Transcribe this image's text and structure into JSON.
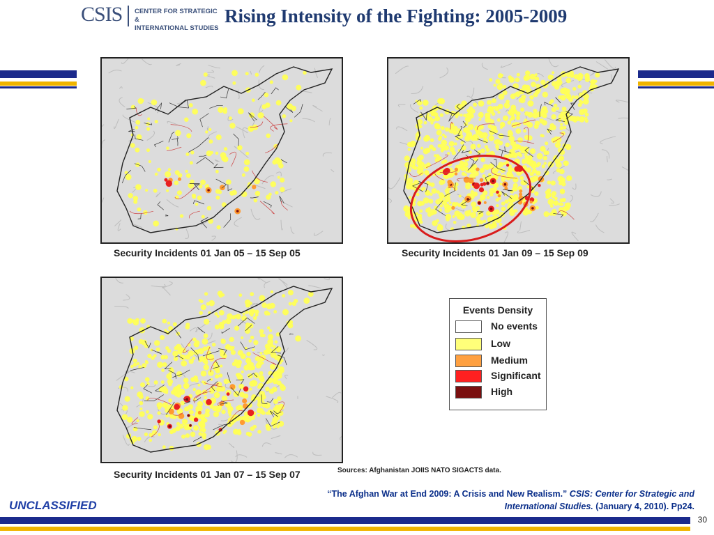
{
  "header": {
    "logo_text": "CSIS",
    "logo_subtitle_line1": "CENTER FOR STRATEGIC &",
    "logo_subtitle_line2": "INTERNATIONAL STUDIES",
    "title": "Rising Intensity of the Fighting: 2005-2009"
  },
  "colors": {
    "navy": "#1b2a8c",
    "gold": "#f0b400",
    "low": "#ffff7a",
    "medium": "#ffa040",
    "significant": "#ff2020",
    "high": "#7a0f0f",
    "highlight_ring": "#d91c1c"
  },
  "maps": [
    {
      "id": "2005",
      "caption": "Security Incidents 01 Jan 05 – 15 Sep 05",
      "intensity": "low"
    },
    {
      "id": "2009",
      "caption": "Security Incidents 01 Jan 09 – 15 Sep 09",
      "intensity": "very-high",
      "highlighted": true
    },
    {
      "id": "2007",
      "caption": "Security Incidents 01 Jan 07 – 15 Sep 07",
      "intensity": "high"
    }
  ],
  "legend": {
    "title": "Events Density",
    "items": [
      {
        "label": "No events",
        "color": "#ffffff"
      },
      {
        "label": "Low",
        "color": "#ffff7a"
      },
      {
        "label": "Medium",
        "color": "#ffa040"
      },
      {
        "label": "Significant",
        "color": "#ff2020"
      },
      {
        "label": "High",
        "color": "#7a0f0f"
      }
    ]
  },
  "sources": "Sources: Afghanistan JOIIS NATO SIGACTS data.",
  "citation": {
    "quote": "“The Afghan War at End 2009: A Crisis and New Realism.”",
    "publisher": "CSIS: Center for Strategic and International Studies.",
    "date": "(January 4, 2010). Pp24."
  },
  "footer": {
    "classification": "UNCLASSIFIED",
    "page_number": "30"
  }
}
